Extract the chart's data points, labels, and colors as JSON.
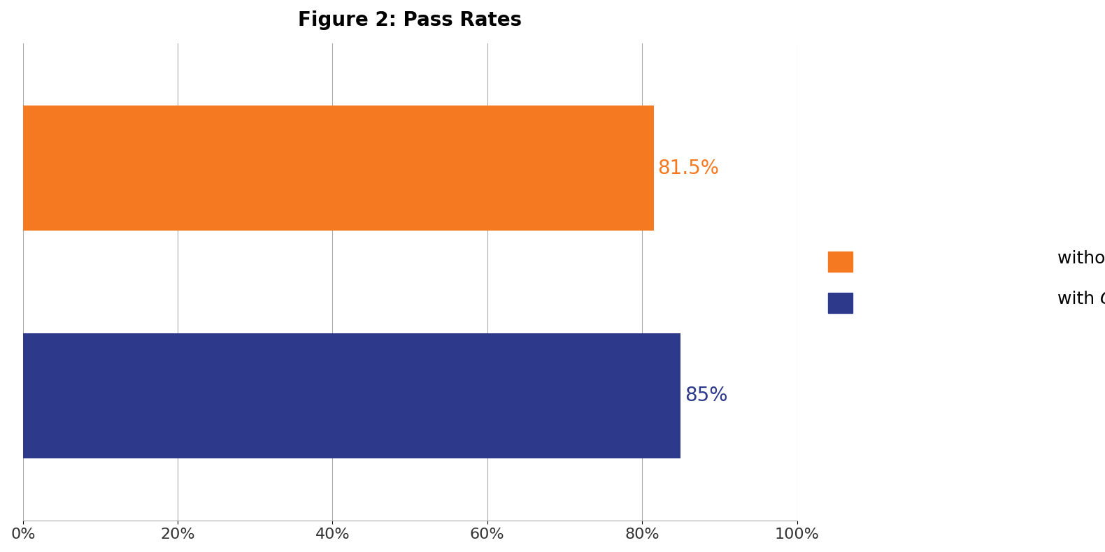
{
  "title": "Figure 2: Pass Rates",
  "values": [
    0.815,
    0.85
  ],
  "bar_colors": [
    "#F47920",
    "#2D3A8C"
  ],
  "label_colors": [
    "#F47920",
    "#2D3A8C"
  ],
  "labels": [
    "81.5%",
    "85%"
  ],
  "xlim": [
    0,
    1.0
  ],
  "xticks": [
    0.0,
    0.2,
    0.4,
    0.6,
    0.8,
    1.0
  ],
  "xticklabels": [
    "0%",
    "20%",
    "40%",
    "60%",
    "80%",
    "100%"
  ],
  "background_color": "#ffffff",
  "title_fontsize": 20,
  "tick_fontsize": 16,
  "label_fontsize": 20,
  "legend_fontsize": 18,
  "bar_height": 0.55,
  "grid_color": "#aaaaaa"
}
